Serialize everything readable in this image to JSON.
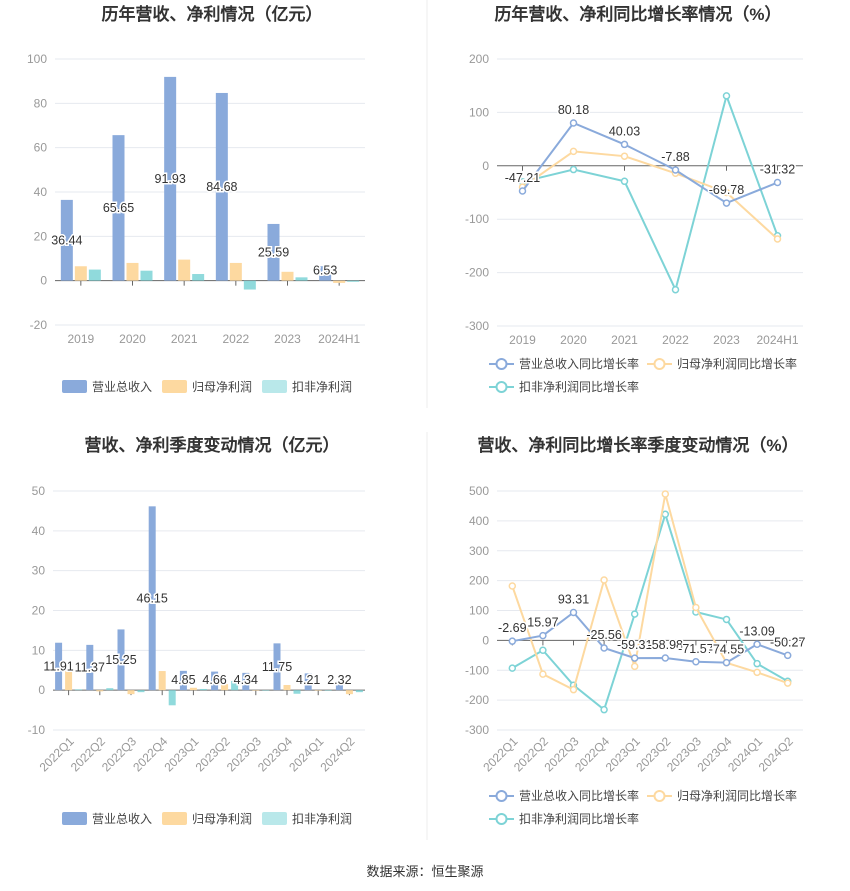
{
  "source": "数据来源：恒生聚源",
  "colors": {
    "revenue": "#8aaadb",
    "net_profit": "#fdd9a0",
    "deducted": "#7dd3d6",
    "deducted_bar": "#b9e8ea",
    "axis": "#666",
    "grid": "#e6e9ef"
  },
  "chart_data": [
    {
      "type": "bar",
      "title": "历年营收、净利情况（亿元）",
      "categories": [
        "2019",
        "2020",
        "2021",
        "2022",
        "2023",
        "2024H1"
      ],
      "ylim": [
        -20,
        100
      ],
      "yticks": [
        -20,
        0,
        20,
        40,
        60,
        80,
        100
      ],
      "grid": true,
      "legend_position": "bottom",
      "series": [
        {
          "name": "营业总收入",
          "values": [
            36.44,
            65.65,
            91.93,
            84.68,
            25.59,
            6.53
          ],
          "labels": [
            "36.44",
            "65.65",
            "91.93",
            "84.68",
            "25.59",
            "6.53"
          ]
        },
        {
          "name": "归母净利润",
          "values": [
            6.5,
            8.0,
            9.5,
            8.0,
            4.0,
            -1.0
          ]
        },
        {
          "name": "扣非净利润",
          "values": [
            5.0,
            4.5,
            3.0,
            -4.0,
            1.5,
            -0.5
          ]
        }
      ]
    },
    {
      "type": "line",
      "title": "历年营收、净利同比增长率情况（%）",
      "categories": [
        "2019",
        "2020",
        "2021",
        "2022",
        "2023",
        "2024H1"
      ],
      "ylim": [
        -300,
        200
      ],
      "yticks": [
        -300,
        -200,
        -100,
        0,
        100,
        200
      ],
      "grid": true,
      "legend_position": "bottom",
      "series": [
        {
          "name": "营业总收入同比增长率",
          "values": [
            -47.21,
            80.18,
            40.03,
            -7.88,
            -69.78,
            -31.32
          ],
          "labels": [
            "-47.21",
            "80.18",
            "40.03",
            "-7.88",
            "-69.78",
            "-31.32"
          ]
        },
        {
          "name": "归母净利润同比增长率",
          "values": [
            -40,
            27,
            18,
            -14,
            -50,
            -137
          ]
        },
        {
          "name": "扣非净利润同比增长率",
          "values": [
            -30,
            -7,
            -29,
            -232,
            131,
            -131
          ]
        }
      ]
    },
    {
      "type": "bar",
      "title": "营收、净利季度变动情况（亿元）",
      "categories": [
        "2022Q1",
        "2022Q2",
        "2022Q3",
        "2022Q4",
        "2023Q1",
        "2023Q2",
        "2023Q3",
        "2023Q4",
        "2024Q1",
        "2024Q2"
      ],
      "ylim": [
        -10,
        50
      ],
      "yticks": [
        -10,
        0,
        10,
        20,
        30,
        40,
        50
      ],
      "grid": true,
      "legend_position": "bottom",
      "series": [
        {
          "name": "营业总收入",
          "values": [
            11.91,
            11.37,
            15.25,
            46.15,
            4.85,
            4.66,
            4.34,
            11.75,
            4.21,
            2.32
          ],
          "labels": [
            "11.91",
            "11.37",
            "15.25",
            "46.15",
            "4.85",
            "4.66",
            "4.34",
            "11.75",
            "4.21",
            "2.32"
          ]
        },
        {
          "name": "归母净利润",
          "values": [
            4.8,
            -0.3,
            -1.0,
            4.8,
            0.6,
            1.5,
            0,
            1.3,
            0,
            -1.0
          ]
        },
        {
          "name": "扣非净利润",
          "values": [
            0.2,
            0.5,
            -0.5,
            -3.8,
            0.3,
            2.3,
            0,
            -0.9,
            0,
            -0.5
          ]
        }
      ]
    },
    {
      "type": "line",
      "title": "营收、净利同比增长率季度变动情况（%）",
      "categories": [
        "2022Q1",
        "2022Q2",
        "2022Q3",
        "2022Q4",
        "2023Q1",
        "2023Q2",
        "2023Q3",
        "2023Q4",
        "2024Q1",
        "2024Q2"
      ],
      "ylim": [
        -300,
        500
      ],
      "yticks": [
        -300,
        -200,
        -100,
        0,
        100,
        200,
        300,
        400,
        500
      ],
      "grid": true,
      "legend_position": "bottom",
      "series": [
        {
          "name": "营业总收入同比增长率",
          "values": [
            -2.69,
            15.97,
            93.31,
            -25.56,
            -59.31,
            -58.98,
            -71.57,
            -74.55,
            -13.09,
            -50.27
          ],
          "labels": [
            "-2.69",
            "15.97",
            "93.31",
            "-25.56",
            "-59.31",
            "-58.98",
            "-71.57",
            "-74.55",
            "-13.09",
            "-50.27"
          ]
        },
        {
          "name": "归母净利润同比增长率",
          "values": [
            182,
            -113,
            -165,
            202,
            -87,
            490,
            110,
            -75,
            -107,
            -143
          ]
        },
        {
          "name": "扣非净利润同比增长率",
          "values": [
            -93,
            -33,
            -150,
            -232,
            88,
            422,
            95,
            70,
            -78,
            -137
          ]
        }
      ]
    }
  ]
}
